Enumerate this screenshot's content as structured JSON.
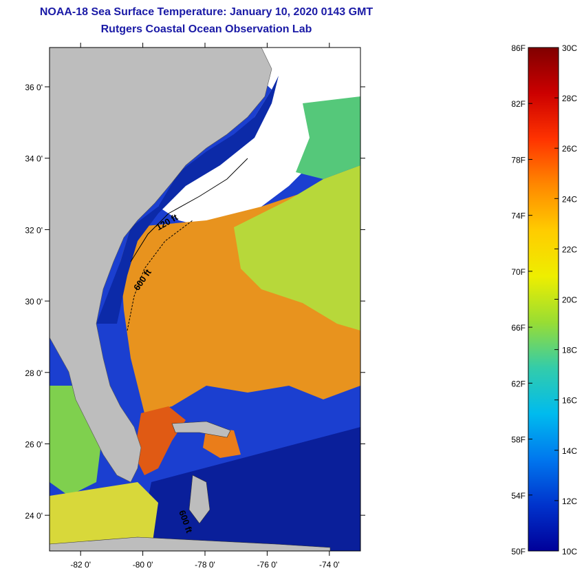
{
  "title": "NOAA-18 Sea Surface Temperature:  January 10, 2020 0143 GMT",
  "subtitle": "Rutgers Coastal Ocean Observation Lab",
  "map": {
    "lat_ticks": [
      "36 0'",
      "34 0'",
      "32 0'",
      "30 0'",
      "28 0'",
      "26 0'",
      "24 0'"
    ],
    "lat_values": [
      36,
      34,
      32,
      30,
      28,
      26,
      24
    ],
    "lat_range": [
      23,
      37.1
    ],
    "lon_ticks": [
      "-82 0'",
      "-80 0'",
      "-78 0'",
      "-76 0'",
      "-74 0'"
    ],
    "lon_values": [
      -82,
      -80,
      -78,
      -76,
      -74
    ],
    "lon_range": [
      -83,
      -73
    ],
    "isobath_labels": [
      "120 ft",
      "600 ft",
      "600 ft"
    ],
    "colors": {
      "land": "#bdbdbd",
      "frame": "#000000",
      "title": "#1a1aa6"
    }
  },
  "colorbar": {
    "f_labels": [
      "86F",
      "82F",
      "78F",
      "74F",
      "70F",
      "66F",
      "62F",
      "58F",
      "54F",
      "50F"
    ],
    "f_values": [
      86,
      82,
      78,
      74,
      70,
      66,
      62,
      58,
      54,
      50
    ],
    "c_labels": [
      "30C",
      "28C",
      "26C",
      "24C",
      "22C",
      "20C",
      "18C",
      "16C",
      "14C",
      "12C",
      "10C"
    ],
    "c_values": [
      30,
      28,
      26,
      24,
      22,
      20,
      18,
      16,
      14,
      12,
      10
    ],
    "range_c": [
      10,
      30
    ],
    "gradient": [
      "#800000",
      "#cc0000",
      "#ff3300",
      "#ff8800",
      "#ffcc00",
      "#eeee00",
      "#99dd33",
      "#33ccaa",
      "#00bbee",
      "#0077ee",
      "#0033cc",
      "#000099"
    ]
  }
}
